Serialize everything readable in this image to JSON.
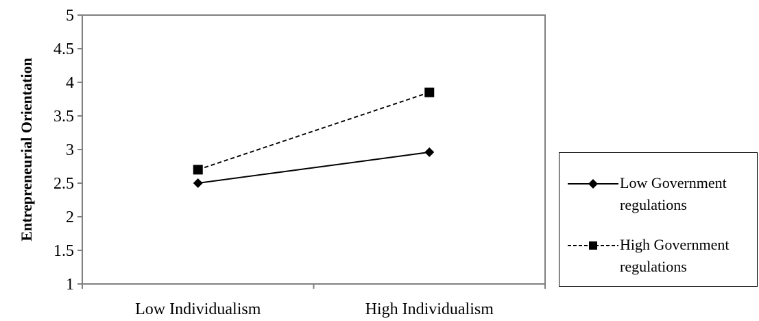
{
  "chart_data": {
    "type": "line",
    "title": "",
    "xlabel": "",
    "ylabel": "Entrepreneurial Orientation",
    "categories": [
      "Low Individualism",
      "High Individualism"
    ],
    "ylim": [
      1,
      5
    ],
    "yticks": [
      "1",
      "1.5",
      "2",
      "2.5",
      "3",
      "3.5",
      "4",
      "4.5",
      "5"
    ],
    "grid": false,
    "legend_position": "right",
    "series": [
      {
        "name": "Low Government regulations",
        "values": [
          2.5,
          2.96
        ],
        "marker": "diamond",
        "line_style": "solid",
        "color": "#000000"
      },
      {
        "name": "High Government regulations",
        "values": [
          2.7,
          3.85
        ],
        "marker": "square",
        "line_style": "dashed",
        "color": "#000000"
      }
    ]
  },
  "legend": {
    "items": [
      {
        "label": "Low Government regulations"
      },
      {
        "label": "High Government regulations"
      }
    ]
  }
}
